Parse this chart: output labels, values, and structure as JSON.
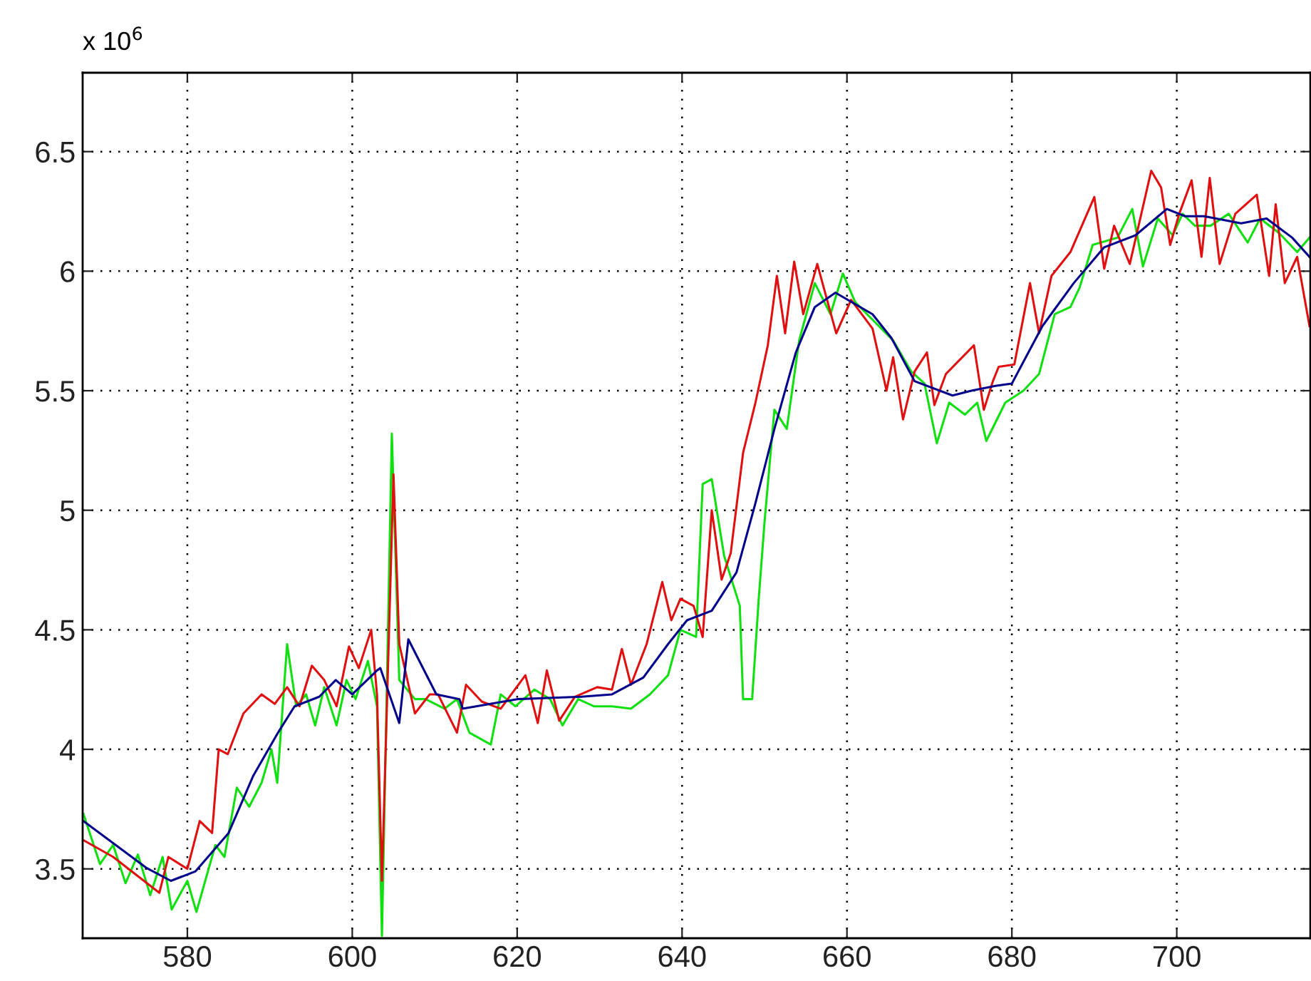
{
  "chart_data": {
    "type": "line",
    "xlim": [
      567.3,
      716.2
    ],
    "ylim": [
      3.21,
      6.83
    ],
    "xticks": [
      580,
      600,
      620,
      640,
      660,
      680,
      700
    ],
    "yticks": [
      3.5,
      4,
      4.5,
      5,
      5.5,
      6,
      6.5
    ],
    "grid": true,
    "line_style": "solid",
    "marker": "none",
    "annotations": [
      "x 10$^{6}$"
    ],
    "series": [
      {
        "color": "#e01010",
        "x": [
          567.4,
          571,
          576.6,
          577.7,
          580,
          581.5,
          583,
          583.8,
          584.9,
          586.8,
          589,
          590.6,
          592.1,
          593.6,
          595.1,
          596.6,
          598.1,
          599.6,
          600.8,
          602.3,
          603,
          603.6,
          605,
          605.7,
          607.6,
          609.4,
          610.4,
          612.7,
          613.8,
          615.7,
          618,
          621,
          622.5,
          623.6,
          625.1,
          627,
          629.7,
          631.5,
          632.7,
          633.8,
          635.7,
          637.6,
          638.7,
          639.8,
          641.4,
          642.5,
          643.6,
          644.8,
          645.9,
          647.4,
          648.9,
          650.4,
          651.5,
          652.5,
          653.6,
          654.7,
          656.4,
          658.7,
          660.5,
          663.1,
          664.8,
          665.6,
          666.8,
          668.2,
          669.7,
          670.6,
          672,
          675.4,
          676.6,
          677.7,
          678.4,
          680.3,
          682.2,
          683.3,
          684.8,
          687.1,
          690,
          691.2,
          692.4,
          694.3,
          696.9,
          698.1,
          699.2,
          700.3,
          701.8,
          703,
          704,
          705.2,
          707.1,
          709.7,
          711.2,
          712,
          713.1,
          714.6,
          716.1
        ],
        "values": [
          3.62,
          3.55,
          3.4,
          3.55,
          3.5,
          3.7,
          3.65,
          4.0,
          3.98,
          4.15,
          4.23,
          4.19,
          4.26,
          4.18,
          4.35,
          4.29,
          4.18,
          4.43,
          4.34,
          4.5,
          4.23,
          3.45,
          5.15,
          4.44,
          4.15,
          4.23,
          4.23,
          4.07,
          4.27,
          4.2,
          4.17,
          4.31,
          4.11,
          4.33,
          4.12,
          4.22,
          4.26,
          4.25,
          4.42,
          4.27,
          4.44,
          4.7,
          4.54,
          4.63,
          4.6,
          4.47,
          5.0,
          4.71,
          4.82,
          5.24,
          5.45,
          5.69,
          5.98,
          5.74,
          6.04,
          5.82,
          6.03,
          5.74,
          5.88,
          5.76,
          5.5,
          5.64,
          5.38,
          5.58,
          5.66,
          5.44,
          5.57,
          5.69,
          5.42,
          5.54,
          5.6,
          5.61,
          5.95,
          5.74,
          5.98,
          6.08,
          6.31,
          6.01,
          6.19,
          6.03,
          6.42,
          6.35,
          6.11,
          6.24,
          6.38,
          6.06,
          6.39,
          6.03,
          6.24,
          6.32,
          5.98,
          6.28,
          5.95,
          6.06,
          5.77
        ]
      },
      {
        "color": "#10e010",
        "x": [
          567.4,
          569.4,
          571,
          572.5,
          574,
          575.5,
          577,
          578.1,
          580,
          581.1,
          583.4,
          584.5,
          586,
          587.5,
          589,
          590.2,
          590.9,
          592.1,
          593.2,
          594.4,
          595.5,
          596.6,
          598.1,
          599.3,
          600.4,
          601.9,
          603,
          603.6,
          604.8,
          605.7,
          607.6,
          608.9,
          611.2,
          612.7,
          614.2,
          616.8,
          618,
          619.8,
          622.1,
          624,
          625.5,
          627.4,
          629.3,
          631.5,
          633.8,
          636.1,
          638.3,
          639.8,
          641.7,
          642.5,
          643.6,
          645.1,
          647,
          647.4,
          648.5,
          649.3,
          650,
          651.2,
          652.7,
          654.2,
          656.1,
          658,
          659.5,
          661,
          663.3,
          665.6,
          667.8,
          669.4,
          670.9,
          672.4,
          674.3,
          675.8,
          676.9,
          679.2,
          681.4,
          683.3,
          685.2,
          687.1,
          688.2,
          689.8,
          692.8,
          694.6,
          695.9,
          697.7,
          699.5,
          700.7,
          702.2,
          704.1,
          706.3,
          708.6,
          710.1,
          712.4,
          714.6,
          716.1
        ],
        "values": [
          3.73,
          3.52,
          3.6,
          3.44,
          3.56,
          3.39,
          3.55,
          3.33,
          3.45,
          3.32,
          3.6,
          3.55,
          3.84,
          3.76,
          3.86,
          4.0,
          3.86,
          4.44,
          4.18,
          4.23,
          4.1,
          4.26,
          4.1,
          4.29,
          4.21,
          4.37,
          4.18,
          3.22,
          5.32,
          4.29,
          4.21,
          4.21,
          4.17,
          4.21,
          4.07,
          4.02,
          4.23,
          4.18,
          4.25,
          4.21,
          4.1,
          4.21,
          4.18,
          4.18,
          4.17,
          4.23,
          4.31,
          4.5,
          4.47,
          5.11,
          5.13,
          4.81,
          4.6,
          4.21,
          4.21,
          4.63,
          4.95,
          5.42,
          5.34,
          5.71,
          5.95,
          5.82,
          5.99,
          5.87,
          5.79,
          5.71,
          5.58,
          5.53,
          5.28,
          5.45,
          5.4,
          5.45,
          5.29,
          5.45,
          5.5,
          5.57,
          5.82,
          5.85,
          5.93,
          6.11,
          6.14,
          6.26,
          6.02,
          6.22,
          6.15,
          6.24,
          6.19,
          6.19,
          6.24,
          6.12,
          6.22,
          6.16,
          6.08,
          6.14
        ]
      },
      {
        "color": "#00008b",
        "x": [
          567.4,
          575,
          578,
          581,
          585,
          588,
          591,
          593,
          596,
          598,
          600,
          603,
          603.4,
          605.7,
          606.8,
          610.2,
          613,
          613.4,
          620,
          627.8,
          631.5,
          635.3,
          638.3,
          640.6,
          643.6,
          646.6,
          648.9,
          651.2,
          653.8,
          656.1,
          658.6,
          663.1,
          665.4,
          668.2,
          672.8,
          675.1,
          678,
          680,
          683.7,
          687.5,
          691.2,
          695,
          698.8,
          701,
          703.3,
          707.8,
          710.9,
          714,
          716.1
        ],
        "values": [
          3.7,
          3.505,
          3.45,
          3.49,
          3.65,
          3.89,
          4.07,
          4.18,
          4.22,
          4.29,
          4.23,
          4.33,
          4.34,
          4.11,
          4.46,
          4.23,
          4.21,
          4.17,
          4.21,
          4.22,
          4.23,
          4.3,
          4.44,
          4.54,
          4.58,
          4.74,
          5.03,
          5.34,
          5.66,
          5.85,
          5.91,
          5.82,
          5.72,
          5.54,
          5.48,
          5.5,
          5.52,
          5.53,
          5.77,
          5.95,
          6.1,
          6.15,
          6.26,
          6.23,
          6.23,
          6.2,
          6.22,
          6.14,
          6.06
        ]
      }
    ]
  }
}
